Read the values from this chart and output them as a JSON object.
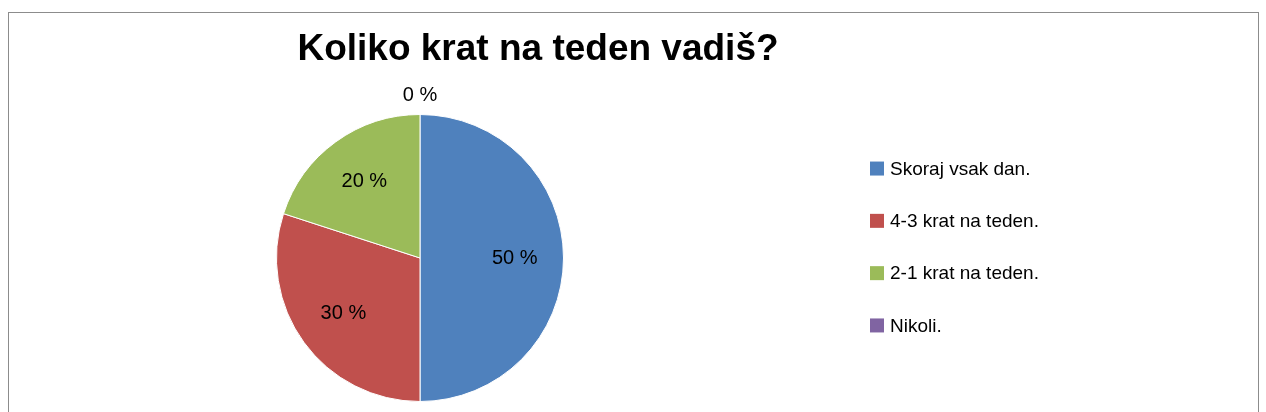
{
  "chart_data": {
    "type": "pie",
    "title": "Koliko krat na teden vadiš?",
    "categories": [
      "Skoraj vsak dan.",
      "4-3 krat na teden.",
      "2-1 krat na teden.",
      "Nikoli."
    ],
    "values": [
      50,
      30,
      20,
      0
    ],
    "colors": [
      "#4f81bd",
      "#c0504d",
      "#9bbb59",
      "#8064a2"
    ],
    "value_labels": [
      "50 %",
      "30 %",
      "20 %",
      "0 %"
    ],
    "legend": "right"
  }
}
